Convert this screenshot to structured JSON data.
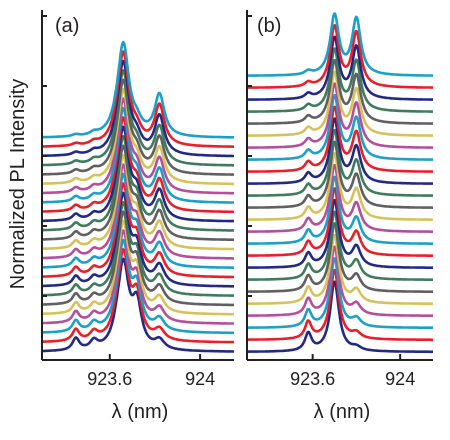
{
  "figure": {
    "ylabel": "Normalized PL Intensity"
  },
  "chart_data": [
    {
      "type": "line",
      "panel_label": "(a)",
      "xlabel": "λ (nm)",
      "ylabel": "Normalized PL Intensity",
      "xlim": [
        923.3,
        924.15
      ],
      "xticks": [
        923.6,
        924
      ],
      "xtick_labels": [
        "923.6",
        "924"
      ],
      "grid": false,
      "legend": "none",
      "trace_count": 24,
      "series_colors": [
        "#232a86",
        "#e8202a",
        "#1ba0c9",
        "#b54f9c",
        "#d4c35a",
        "#606062",
        "#3f7b5d"
      ],
      "peaks_nm": [
        923.45,
        923.53,
        923.63,
        923.66,
        923.72,
        923.82
      ],
      "peak_heights_bottom_trace": [
        0.13,
        0.09,
        0.07,
        0.92,
        0.45,
        0.1
      ],
      "peak_heights_top_trace": [
        0.02,
        0.03,
        0.05,
        1.0,
        0.1,
        0.45
      ]
    },
    {
      "type": "line",
      "panel_label": "(b)",
      "xlabel": "λ (nm)",
      "ylabel": "",
      "xlim": [
        923.3,
        924.15
      ],
      "xticks": [
        923.6,
        924
      ],
      "xtick_labels": [
        "923.6",
        "924"
      ],
      "grid": false,
      "legend": "none",
      "trace_count": 24,
      "series_colors": [
        "#232a86",
        "#e8202a",
        "#1ba0c9",
        "#b54f9c",
        "#d4c35a",
        "#606062",
        "#3f7b5d"
      ],
      "peaks_nm": [
        923.58,
        923.7,
        923.8
      ],
      "peak_heights_bottom_trace": [
        0.25,
        1.0,
        0.05
      ],
      "peak_heights_top_trace": [
        0.05,
        0.85,
        0.8
      ]
    }
  ]
}
